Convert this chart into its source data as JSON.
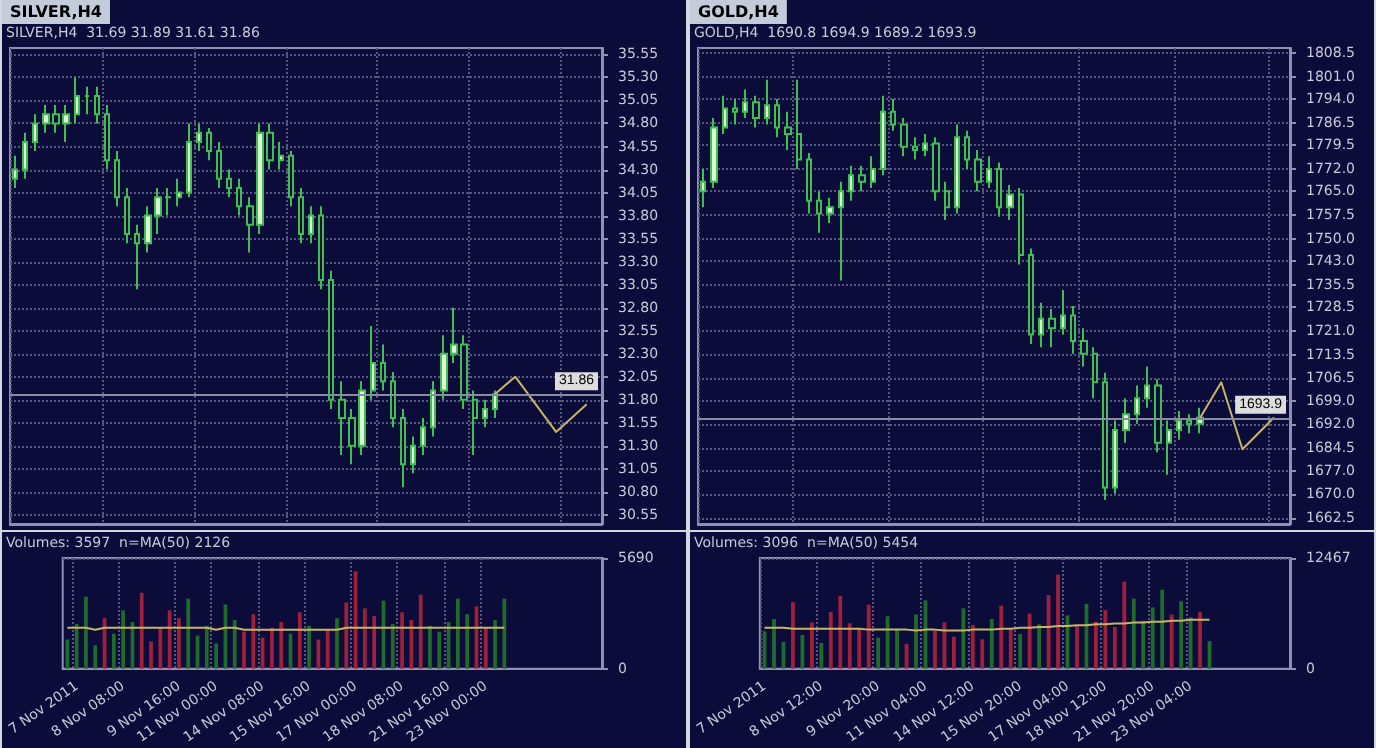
{
  "chart_data": [
    {
      "type": "candlestick",
      "title": "SILVER,H4",
      "subtitle": "SILVER,H4  31.69 31.89 31.61 31.86",
      "categories": [
        null,
        null,
        null,
        null,
        null,
        null,
        null,
        null,
        null,
        null,
        null,
        null,
        null,
        null,
        null,
        null,
        null,
        null,
        null,
        null,
        null,
        null,
        null,
        null,
        null,
        null,
        null,
        null,
        null,
        null,
        null,
        null,
        null,
        null,
        null,
        null,
        null,
        null,
        null,
        null,
        null,
        null,
        null,
        null,
        null,
        null,
        null,
        null,
        null,
        null,
        null,
        null,
        null,
        null,
        null,
        null,
        null,
        null
      ],
      "series": [
        {
          "color": "#3fbf4f",
          "ohlc": [
            [
              34.2,
              34.45,
              34.1,
              34.3
            ],
            [
              34.3,
              34.7,
              34.2,
              34.6
            ],
            [
              34.6,
              34.9,
              34.5,
              34.8
            ],
            [
              34.8,
              35.0,
              34.7,
              34.9
            ],
            [
              34.9,
              35.0,
              34.7,
              34.8
            ],
            [
              34.8,
              35.0,
              34.6,
              34.9
            ],
            [
              34.9,
              35.3,
              34.8,
              35.1
            ],
            [
              35.1,
              35.2,
              34.9,
              35.1
            ],
            [
              35.1,
              35.2,
              34.8,
              34.9
            ],
            [
              34.9,
              35.0,
              34.3,
              34.4
            ],
            [
              34.4,
              34.5,
              33.9,
              34.0
            ],
            [
              34.0,
              34.1,
              33.5,
              33.6
            ],
            [
              33.6,
              33.7,
              33.0,
              33.5
            ],
            [
              33.5,
              33.9,
              33.4,
              33.8
            ],
            [
              33.8,
              34.1,
              33.6,
              34.0
            ],
            [
              34.0,
              34.1,
              33.8,
              34.0
            ],
            [
              34.0,
              34.2,
              33.9,
              34.05
            ],
            [
              34.05,
              34.8,
              34.0,
              34.6
            ],
            [
              34.6,
              34.8,
              34.5,
              34.7
            ],
            [
              34.7,
              34.75,
              34.4,
              34.5
            ],
            [
              34.5,
              34.6,
              34.1,
              34.2
            ],
            [
              34.2,
              34.3,
              34.0,
              34.1
            ],
            [
              34.1,
              34.2,
              33.8,
              33.9
            ],
            [
              33.9,
              34.0,
              33.4,
              33.7
            ],
            [
              33.7,
              34.8,
              33.6,
              34.7
            ],
            [
              34.7,
              34.8,
              34.3,
              34.4
            ],
            [
              34.4,
              34.6,
              34.3,
              34.45
            ],
            [
              34.45,
              34.5,
              33.9,
              34.0
            ],
            [
              34.0,
              34.1,
              33.5,
              33.6
            ],
            [
              33.6,
              33.9,
              33.5,
              33.8
            ],
            [
              33.8,
              33.9,
              33.0,
              33.1
            ],
            [
              33.1,
              33.2,
              31.7,
              31.8
            ],
            [
              31.8,
              32.0,
              31.2,
              31.6
            ],
            [
              31.6,
              31.7,
              31.1,
              31.3
            ],
            [
              31.3,
              32.0,
              31.2,
              31.9
            ],
            [
              31.9,
              32.6,
              31.8,
              32.2
            ],
            [
              32.2,
              32.4,
              31.9,
              32.0
            ],
            [
              32.0,
              32.1,
              31.5,
              31.6
            ],
            [
              31.6,
              31.7,
              30.85,
              31.1
            ],
            [
              31.1,
              31.4,
              31.0,
              31.3
            ],
            [
              31.3,
              31.6,
              31.2,
              31.5
            ],
            [
              31.5,
              32.0,
              31.4,
              31.9
            ],
            [
              31.9,
              32.5,
              31.8,
              32.3
            ],
            [
              32.3,
              32.8,
              32.2,
              32.4
            ],
            [
              32.4,
              32.5,
              31.7,
              31.8
            ],
            [
              31.8,
              31.9,
              31.2,
              31.6
            ],
            [
              31.6,
              31.8,
              31.5,
              31.7
            ],
            [
              31.7,
              31.9,
              31.6,
              31.86
            ],
            null,
            null,
            null,
            null,
            null,
            null,
            null,
            null,
            null,
            null
          ]
        },
        {
          "type": "line",
          "color": "#c8b464",
          "values": [
            null,
            null,
            null,
            null,
            null,
            null,
            null,
            null,
            null,
            null,
            null,
            null,
            null,
            null,
            null,
            null,
            null,
            null,
            null,
            null,
            null,
            null,
            null,
            null,
            null,
            null,
            null,
            null,
            null,
            null,
            null,
            null,
            null,
            null,
            null,
            null,
            null,
            null,
            null,
            null,
            null,
            null,
            null,
            null,
            null,
            null,
            null,
            31.86,
            null,
            32.05,
            null,
            null,
            null,
            31.45,
            null,
            null,
            31.75,
            null
          ]
        }
      ],
      "ylim": [
        30.45,
        35.62
      ],
      "yticks": [
        30.55,
        {
          "value": 30.8,
          "label": "30.80"
        },
        31.05,
        {
          "value": 31.3,
          "label": "31.30"
        },
        31.55,
        {
          "value": 31.8,
          "label": "31.80"
        },
        32.05,
        {
          "value": 32.3,
          "label": "32.30"
        },
        32.55,
        {
          "value": 32.8,
          "label": "32.80"
        },
        33.05,
        {
          "value": 33.3,
          "label": "33.30"
        },
        33.55,
        {
          "value": 33.8,
          "label": "33.80"
        },
        34.05,
        {
          "value": 34.3,
          "label": "34.30"
        },
        34.55,
        {
          "value": 34.8,
          "label": "34.80"
        },
        35.05,
        {
          "value": 35.3,
          "label": "35.30"
        },
        35.55
      ],
      "ref_lines": [
        {
          "axis": "y",
          "value": 31.86,
          "label": "31.86",
          "color": "#8a8aa0"
        }
      ],
      "tick_labels": "y",
      "grid": true
    },
    {
      "type": "bar",
      "annotations": [
        "Volumes: 3597  n=MA(50) 2126"
      ],
      "categories": [
        null,
        "7 Nov 2011",
        null,
        null,
        null,
        null,
        "8 Nov 08:00",
        null,
        null,
        null,
        null,
        null,
        "9 Nov 16:00",
        null,
        null,
        null,
        "11 Nov 00:00",
        null,
        null,
        null,
        null,
        "14 Nov 08:00",
        null,
        null,
        null,
        null,
        "15 Nov 16:00",
        null,
        null,
        null,
        null,
        "17 Nov 00:00",
        null,
        null,
        null,
        null,
        "18 Nov 08:00",
        null,
        null,
        null,
        null,
        "21 Nov 16:00",
        null,
        null,
        null,
        "23 Nov 00:00",
        null,
        null,
        null,
        null,
        null,
        null,
        null,
        null,
        null,
        null,
        null,
        null
      ],
      "series": [
        {
          "values": [
            1500,
            2300,
            3700,
            1200,
            2600,
            1800,
            3000,
            2400,
            3900,
            1400,
            2100,
            3000,
            2600,
            3600,
            1700,
            2200,
            1300,
            3300,
            2500,
            1900,
            2800,
            1600,
            2100,
            2400,
            1800,
            2900,
            2200,
            1500,
            2000,
            2600,
            3400,
            5000,
            3100,
            2700,
            3500,
            2300,
            2900,
            2500,
            3800,
            2200,
            1900,
            2400,
            3600,
            2800,
            3200,
            2100,
            2500,
            3600,
            null,
            null,
            null,
            null,
            null,
            null,
            null,
            null,
            null,
            null
          ],
          "colors": [
            "#1f6b2a",
            "#1f6b2a",
            "#1f6b2a",
            "#1f6b2a",
            "#a0203c",
            "#1f6b2a",
            "#1f6b2a",
            "#1f6b2a",
            "#a0203c",
            "#a0203c",
            "#a0203c",
            "#a0203c",
            "#a0203c",
            "#1f6b2a",
            "#1f6b2a",
            "#1f6b2a",
            "#1f6b2a",
            "#1f6b2a",
            "#1f6b2a",
            "#a0203c",
            "#a0203c",
            "#a0203c",
            "#a0203c",
            "#a0203c",
            "#1f6b2a",
            "#a0203c",
            "#1f6b2a",
            "#a0203c",
            "#a0203c",
            "#1f6b2a",
            "#a0203c",
            "#a0203c",
            "#a0203c",
            "#a0203c",
            "#1f6b2a",
            "#1f6b2a",
            "#a0203c",
            "#a0203c",
            "#a0203c",
            "#1f6b2a",
            "#1f6b2a",
            "#1f6b2a",
            "#1f6b2a",
            "#1f6b2a",
            "#a0203c",
            "#a0203c",
            "#1f6b2a",
            "#1f6b2a",
            null,
            null,
            null,
            null,
            null,
            null,
            null,
            null,
            null,
            null
          ]
        },
        {
          "type": "line",
          "color": "#c8b464",
          "values": [
            2100,
            2100,
            2100,
            2000,
            2100,
            2100,
            2100,
            2100,
            2100,
            2100,
            2100,
            2100,
            2100,
            2100,
            2100,
            2100,
            2000,
            2100,
            2100,
            2000,
            2000,
            2000,
            2000,
            2000,
            2000,
            2000,
            2000,
            2000,
            2000,
            2000,
            2100,
            2100,
            2100,
            2100,
            2100,
            2100,
            2100,
            2100,
            2100,
            2100,
            2100,
            2100,
            2100,
            2100,
            2100,
            2100,
            2100,
            2100,
            null,
            null,
            null,
            null,
            null,
            null,
            null,
            null,
            null,
            null
          ]
        }
      ],
      "ylim": [
        0,
        5690
      ],
      "yticks": [
        0,
        5690
      ],
      "grid": true
    },
    {
      "type": "candlestick",
      "title": "GOLD,H4",
      "subtitle": "GOLD,H4  1690.8 1694.9 1689.2 1693.9",
      "categories": [
        null,
        null,
        null,
        null,
        null,
        null,
        null,
        null,
        null,
        null,
        null,
        null,
        null,
        null,
        null,
        null,
        null,
        null,
        null,
        null,
        null,
        null,
        null,
        null,
        null,
        null,
        null,
        null,
        null,
        null,
        null,
        null,
        null,
        null,
        null,
        null,
        null,
        null,
        null,
        null,
        null,
        null,
        null,
        null,
        null,
        null,
        null,
        null,
        null,
        null,
        null,
        null,
        null,
        null,
        null,
        null
      ],
      "series": [
        {
          "color": "#3fbf4f",
          "ohlc": [
            [
              1765,
              1772,
              1760,
              1768
            ],
            [
              1768,
              1788,
              1766,
              1785
            ],
            [
              1785,
              1795,
              1783,
              1791
            ],
            [
              1791,
              1794,
              1786,
              1790
            ],
            [
              1790,
              1797,
              1788,
              1793
            ],
            [
              1793,
              1795,
              1785,
              1788
            ],
            [
              1788,
              1800,
              1786,
              1792
            ],
            [
              1792,
              1794,
              1782,
              1785
            ],
            [
              1785,
              1790,
              1778,
              1783
            ],
            [
              1783,
              1800,
              1772,
              1775
            ],
            [
              1775,
              1777,
              1758,
              1762
            ],
            [
              1762,
              1765,
              1752,
              1758
            ],
            [
              1758,
              1763,
              1755,
              1760
            ],
            [
              1760,
              1768,
              1737,
              1765
            ],
            [
              1765,
              1773,
              1762,
              1770
            ],
            [
              1770,
              1773,
              1765,
              1768
            ],
            [
              1768,
              1776,
              1766,
              1772
            ],
            [
              1772,
              1795,
              1770,
              1790
            ],
            [
              1790,
              1794,
              1784,
              1786
            ],
            [
              1786,
              1788,
              1776,
              1779
            ],
            [
              1779,
              1782,
              1775,
              1778
            ],
            [
              1778,
              1783,
              1776,
              1780
            ],
            [
              1780,
              1782,
              1762,
              1765
            ],
            [
              1765,
              1768,
              1756,
              1760
            ],
            [
              1760,
              1786,
              1758,
              1782
            ],
            [
              1782,
              1784,
              1772,
              1775
            ],
            [
              1775,
              1778,
              1765,
              1768
            ],
            [
              1768,
              1776,
              1766,
              1772
            ],
            [
              1772,
              1774,
              1757,
              1760
            ],
            [
              1760,
              1767,
              1756,
              1764
            ],
            [
              1764,
              1766,
              1742,
              1745
            ],
            [
              1745,
              1747,
              1717,
              1720
            ],
            [
              1720,
              1730,
              1716,
              1725
            ],
            [
              1725,
              1728,
              1716,
              1722
            ],
            [
              1722,
              1734,
              1720,
              1726
            ],
            [
              1726,
              1729,
              1714,
              1718
            ],
            [
              1718,
              1722,
              1710,
              1714
            ],
            [
              1714,
              1716,
              1700,
              1705
            ],
            [
              1705,
              1708,
              1668,
              1672
            ],
            [
              1672,
              1693,
              1670,
              1690
            ],
            [
              1690,
              1700,
              1686,
              1695
            ],
            [
              1695,
              1704,
              1692,
              1700
            ],
            [
              1700,
              1710,
              1697,
              1704
            ],
            [
              1704,
              1706,
              1683,
              1686
            ],
            [
              1686,
              1693,
              1676,
              1690
            ],
            [
              1690,
              1696,
              1687,
              1693
            ],
            [
              1693,
              1695,
              1689,
              1692
            ],
            [
              1692,
              1697,
              1689,
              1693.9
            ],
            null,
            null,
            null,
            null,
            null,
            null,
            null,
            null
          ]
        },
        {
          "type": "line",
          "color": "#c8b464",
          "values": [
            null,
            null,
            null,
            null,
            null,
            null,
            null,
            null,
            null,
            null,
            null,
            null,
            null,
            null,
            null,
            null,
            null,
            null,
            null,
            null,
            null,
            null,
            null,
            null,
            null,
            null,
            null,
            null,
            null,
            null,
            null,
            null,
            null,
            null,
            null,
            null,
            null,
            null,
            null,
            null,
            null,
            null,
            null,
            null,
            null,
            null,
            null,
            1693.9,
            null,
            1705,
            null,
            1684,
            null,
            null,
            1694,
            null
          ]
        }
      ],
      "ylim": [
        1660.5,
        1810
      ],
      "yticks": [
        1662.5,
        {
          "value": 1670,
          "label": "1670.0"
        },
        {
          "value": 1677,
          "label": "1677.0"
        },
        1684.5,
        {
          "value": 1692,
          "label": "1692.0"
        },
        {
          "value": 1699,
          "label": "1699.0"
        },
        1706.5,
        1713.5,
        {
          "value": 1721,
          "label": "1721.0"
        },
        1728.5,
        1735.5,
        {
          "value": 1743,
          "label": "1743.0"
        },
        {
          "value": 1750,
          "label": "1750.0"
        },
        1757.5,
        {
          "value": 1765,
          "label": "1765.0"
        },
        {
          "value": 1772,
          "label": "1772.0"
        },
        1779.5,
        1786.5,
        {
          "value": 1794,
          "label": "1794.0"
        },
        {
          "value": 1801,
          "label": "1801.0"
        },
        1808.5
      ],
      "ref_lines": [
        {
          "axis": "y",
          "value": 1693.9,
          "label": "1693.9",
          "color": "#8a8aa0"
        }
      ],
      "tick_labels": "y",
      "grid": true
    },
    {
      "type": "bar",
      "annotations": [
        "Volumes: 3096  n=MA(50) 5454"
      ],
      "categories": [
        "7 Nov 2011",
        null,
        null,
        null,
        null,
        null,
        "8 Nov 12:00",
        null,
        null,
        null,
        null,
        null,
        "9 Nov 20:00",
        null,
        null,
        null,
        null,
        "11 Nov 04:00",
        null,
        null,
        null,
        null,
        "14 Nov 12:00",
        null,
        null,
        null,
        null,
        "15 Nov 20:00",
        null,
        null,
        null,
        null,
        "17 Nov 04:00",
        null,
        null,
        null,
        "18 Nov 12:00",
        null,
        null,
        null,
        null,
        "21 Nov 20:00",
        null,
        null,
        null,
        "23 Nov 04:00",
        null,
        null,
        null,
        null,
        null,
        null,
        null,
        null,
        null,
        null
      ],
      "series": [
        {
          "values": [
            4200,
            5600,
            3000,
            7500,
            3800,
            5200,
            2900,
            6400,
            8200,
            5100,
            4600,
            7200,
            3500,
            5900,
            4400,
            2800,
            6100,
            7700,
            4300,
            5200,
            3600,
            6800,
            4900,
            3300,
            5600,
            7100,
            4500,
            3900,
            6200,
            5000,
            8300,
            10600,
            6000,
            4800,
            7300,
            5300,
            6600,
            4700,
            9800,
            7900,
            5400,
            6900,
            8900,
            6100,
            7600,
            5800,
            6400,
            3100,
            null,
            null,
            null,
            null,
            null,
            null,
            null,
            null
          ],
          "colors": [
            "#1f6b2a",
            "#1f6b2a",
            "#1f6b2a",
            "#a0203c",
            "#1f6b2a",
            "#a0203c",
            "#1f6b2a",
            "#a0203c",
            "#a0203c",
            "#a0203c",
            "#a0203c",
            "#a0203c",
            "#1f6b2a",
            "#1f6b2a",
            "#1f6b2a",
            "#a0203c",
            "#1f6b2a",
            "#1f6b2a",
            "#a0203c",
            "#a0203c",
            "#a0203c",
            "#1f6b2a",
            "#a0203c",
            "#a0203c",
            "#1f6b2a",
            "#a0203c",
            "#a0203c",
            "#1f6b2a",
            "#a0203c",
            "#1f6b2a",
            "#a0203c",
            "#a0203c",
            "#1f6b2a",
            "#a0203c",
            "#1f6b2a",
            "#a0203c",
            "#a0203c",
            "#a0203c",
            "#a0203c",
            "#1f6b2a",
            "#1f6b2a",
            "#1f6b2a",
            "#1f6b2a",
            "#a0203c",
            "#1f6b2a",
            "#1f6b2a",
            "#a0203c",
            "#1f6b2a",
            null,
            null,
            null,
            null,
            null,
            null,
            null,
            null
          ]
        },
        {
          "type": "line",
          "color": "#c8b464",
          "values": [
            4600,
            4600,
            4600,
            4500,
            4500,
            4500,
            4500,
            4500,
            4500,
            4500,
            4500,
            4400,
            4400,
            4400,
            4400,
            4400,
            4300,
            4400,
            4400,
            4300,
            4300,
            4300,
            4400,
            4400,
            4400,
            4500,
            4500,
            4600,
            4600,
            4700,
            4700,
            4800,
            4800,
            4900,
            4900,
            5000,
            5000,
            5100,
            5100,
            5200,
            5200,
            5300,
            5300,
            5400,
            5400,
            5500,
            5500,
            5500,
            null,
            null,
            null,
            null,
            null,
            null,
            null,
            null
          ]
        }
      ],
      "ylim": [
        0,
        12467
      ],
      "yticks": [
        0,
        12467
      ],
      "grid": true
    }
  ]
}
